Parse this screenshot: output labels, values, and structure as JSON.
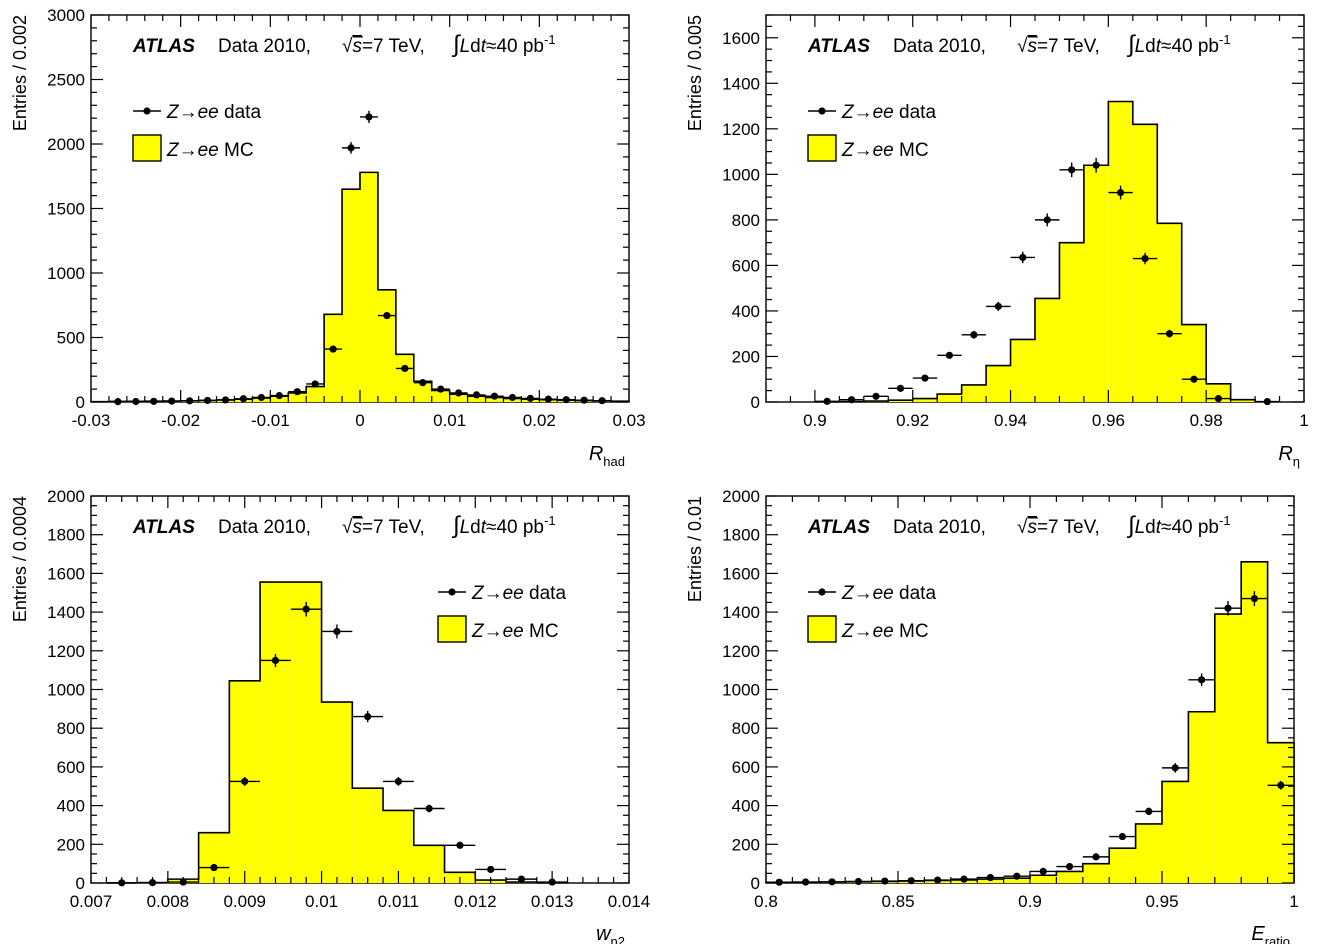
{
  "chart_data": [
    {
      "type": "bar",
      "panel": "top-left",
      "ylabel": "Entries / 0.002",
      "xlabel": "R",
      "xlabel_sub": "had",
      "xlim": [
        -0.03,
        0.03
      ],
      "ylim": [
        0,
        3000
      ],
      "xticks": [
        -0.03,
        -0.02,
        -0.01,
        0,
        0.01,
        0.02,
        0.03
      ],
      "xtick_labels": [
        "-0.03",
        "-0.02",
        "-0.01",
        "0",
        "0.01",
        "0.02",
        "0.03"
      ],
      "yticks": [
        0,
        500,
        1000,
        1500,
        2000,
        2500,
        3000
      ],
      "ytick_labels": [
        "0",
        "500",
        "1000",
        "1500",
        "2000",
        "2500",
        "3000"
      ],
      "xstep_minor": 0.002,
      "ystep_minor": 100,
      "legend_placement": "top-left",
      "mc": {
        "bin_width": 0.002,
        "x_low": [
          -0.03,
          -0.028,
          -0.026,
          -0.024,
          -0.022,
          -0.02,
          -0.018,
          -0.016,
          -0.014,
          -0.012,
          -0.01,
          -0.008,
          -0.006,
          -0.004,
          -0.002,
          0.0,
          0.002,
          0.004,
          0.006,
          0.008,
          0.01,
          0.012,
          0.014,
          0.016,
          0.018,
          0.02,
          0.022,
          0.024,
          0.026,
          0.028
        ],
        "values": [
          3,
          4,
          5,
          6,
          7,
          9,
          12,
          16,
          22,
          30,
          45,
          70,
          120,
          680,
          1650,
          1780,
          870,
          370,
          160,
          90,
          60,
          45,
          35,
          28,
          22,
          18,
          14,
          11,
          8,
          6
        ]
      },
      "data": {
        "x": [
          -0.027,
          -0.025,
          -0.023,
          -0.021,
          -0.019,
          -0.017,
          -0.015,
          -0.013,
          -0.011,
          -0.009,
          -0.007,
          -0.005,
          -0.003,
          -0.001,
          0.001,
          0.003,
          0.005,
          0.007,
          0.009,
          0.011,
          0.013,
          0.015,
          0.017,
          0.019,
          0.021,
          0.023,
          0.025,
          0.027
        ],
        "y": [
          3,
          4,
          5,
          7,
          9,
          12,
          16,
          25,
          35,
          50,
          80,
          140,
          410,
          1970,
          2210,
          670,
          260,
          150,
          100,
          70,
          55,
          45,
          35,
          28,
          22,
          18,
          14,
          10
        ]
      }
    },
    {
      "type": "bar",
      "panel": "top-right",
      "ylabel": "Entries / 0.005",
      "xlabel": "R",
      "xlabel_sub": "η",
      "xlim": [
        0.89,
        1.0
      ],
      "ylim": [
        0,
        1700
      ],
      "xticks": [
        0.9,
        0.92,
        0.94,
        0.96,
        0.98,
        1.0
      ],
      "xtick_labels": [
        "0.9",
        "0.92",
        "0.94",
        "0.96",
        "0.98",
        "1"
      ],
      "yticks": [
        0,
        200,
        400,
        600,
        800,
        1000,
        1200,
        1400,
        1600
      ],
      "ytick_labels": [
        "0",
        "200",
        "400",
        "600",
        "800",
        "1000",
        "1200",
        "1400",
        "1600"
      ],
      "xstep_minor": 0.005,
      "ystep_minor": 50,
      "legend_placement": "top-left",
      "mc": {
        "bin_width": 0.005,
        "x_low": [
          0.9,
          0.905,
          0.91,
          0.915,
          0.92,
          0.925,
          0.93,
          0.935,
          0.94,
          0.945,
          0.95,
          0.955,
          0.96,
          0.965,
          0.97,
          0.975,
          0.98,
          0.985
        ],
        "values": [
          1,
          2,
          4,
          8,
          15,
          35,
          75,
          160,
          275,
          455,
          700,
          1040,
          1320,
          1220,
          785,
          340,
          80,
          10
        ]
      },
      "data": {
        "x": [
          0.9025,
          0.9075,
          0.9125,
          0.9175,
          0.9225,
          0.9275,
          0.9325,
          0.9375,
          0.9425,
          0.9475,
          0.9525,
          0.9575,
          0.9625,
          0.9675,
          0.9725,
          0.9775,
          0.9825,
          0.9925
        ],
        "y": [
          3,
          10,
          25,
          60,
          105,
          205,
          295,
          420,
          635,
          800,
          1020,
          1040,
          920,
          630,
          300,
          100,
          15,
          2
        ]
      }
    },
    {
      "type": "bar",
      "panel": "bottom-left",
      "ylabel": "Entries / 0.0004",
      "xlabel": "w",
      "xlabel_sub": "η2",
      "xlim": [
        0.007,
        0.014
      ],
      "ylim": [
        0,
        2000
      ],
      "xticks": [
        0.007,
        0.008,
        0.009,
        0.01,
        0.011,
        0.012,
        0.013,
        0.014
      ],
      "xtick_labels": [
        "0.007",
        "0.008",
        "0.009",
        "0.01",
        "0.011",
        "0.012",
        "0.013",
        "0.014"
      ],
      "yticks": [
        0,
        200,
        400,
        600,
        800,
        1000,
        1200,
        1400,
        1600,
        1800,
        2000
      ],
      "ytick_labels": [
        "0",
        "200",
        "400",
        "600",
        "800",
        "1000",
        "1200",
        "1400",
        "1600",
        "1800",
        "2000"
      ],
      "xstep_minor": 0.0002,
      "ystep_minor": 50,
      "legend_placement": "top-right",
      "mc": {
        "bin_width": 0.0004,
        "x_low": [
          0.0072,
          0.0076,
          0.008,
          0.0084,
          0.0088,
          0.0092,
          0.0096,
          0.01,
          0.0104,
          0.0108,
          0.0112,
          0.0116,
          0.012,
          0.0124,
          0.0128
        ],
        "values": [
          0,
          2,
          20,
          260,
          1045,
          1555,
          1555,
          935,
          490,
          375,
          195,
          55,
          15,
          5,
          1
        ]
      },
      "data": {
        "x": [
          0.0074,
          0.0078,
          0.0082,
          0.0086,
          0.009,
          0.0094,
          0.0098,
          0.0102,
          0.0106,
          0.011,
          0.0114,
          0.0118,
          0.0122,
          0.0126,
          0.013
        ],
        "y": [
          1,
          2,
          5,
          80,
          525,
          1150,
          1415,
          1300,
          860,
          525,
          385,
          195,
          70,
          20,
          5
        ]
      }
    },
    {
      "type": "bar",
      "panel": "bottom-right",
      "ylabel": "Entries / 0.01",
      "xlabel": "E",
      "xlabel_sub": "ratio",
      "xlim": [
        0.8,
        1.0
      ],
      "ylim": [
        0,
        2000
      ],
      "xticks": [
        0.8,
        0.85,
        0.9,
        0.95,
        1.0
      ],
      "xtick_labels": [
        "0.8",
        "0.85",
        "0.9",
        "0.95",
        "1"
      ],
      "yticks": [
        0,
        200,
        400,
        600,
        800,
        1000,
        1200,
        1400,
        1600,
        1800,
        2000
      ],
      "ytick_labels": [
        "0",
        "200",
        "400",
        "600",
        "800",
        "1000",
        "1200",
        "1400",
        "1600",
        "1800",
        "2000"
      ],
      "xstep_minor": 0.01,
      "ystep_minor": 50,
      "legend_placement": "top-left",
      "mc": {
        "bin_width": 0.01,
        "x_low": [
          0.8,
          0.81,
          0.82,
          0.83,
          0.84,
          0.85,
          0.86,
          0.87,
          0.88,
          0.89,
          0.9,
          0.91,
          0.92,
          0.93,
          0.94,
          0.95,
          0.96,
          0.97,
          0.98,
          0.99
        ],
        "values": [
          3,
          4,
          5,
          6,
          8,
          10,
          13,
          16,
          20,
          25,
          40,
          60,
          100,
          180,
          305,
          525,
          885,
          1390,
          1660,
          725
        ]
      },
      "data": {
        "x": [
          0.805,
          0.815,
          0.825,
          0.835,
          0.845,
          0.855,
          0.865,
          0.875,
          0.885,
          0.895,
          0.905,
          0.915,
          0.925,
          0.935,
          0.945,
          0.955,
          0.965,
          0.975,
          0.985,
          0.995
        ],
        "y": [
          4,
          5,
          6,
          8,
          10,
          12,
          15,
          20,
          28,
          35,
          60,
          85,
          135,
          240,
          370,
          595,
          1050,
          1420,
          1470,
          505
        ]
      }
    }
  ],
  "annotation": {
    "atlas": "ATLAS",
    "data_label": "Data 2010,",
    "sqrt_symbol": "√",
    "s_symbol": "s",
    "energy": "=7 TeV,",
    "integral": "∫",
    "L_symbol": "L",
    "d_symbol": "d",
    "t_symbol": "t",
    "lumi": "≈40 pb",
    "lumi_exp": "-1"
  },
  "legend": {
    "z_symbol": "Z",
    "arrow": "→",
    "ee": "ee",
    "data_suffix": "data",
    "mc_suffix": "MC"
  },
  "colors": {
    "mc_fill": "#ffff00",
    "line": "#000000"
  }
}
